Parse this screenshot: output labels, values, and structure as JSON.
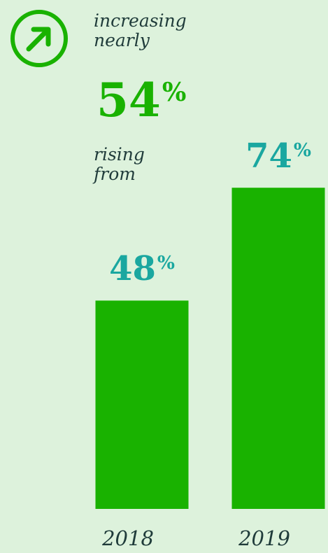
{
  "intro": {
    "line1": "increasing",
    "line2": "nearly"
  },
  "headline": {
    "value": "54",
    "unit": "%"
  },
  "rising": {
    "line1": "rising",
    "line2": "from"
  },
  "colors": {
    "background": "#ddf2dc",
    "bar": "#19b200",
    "headline": "#19b200",
    "bar_label": "#1aa7a0",
    "text": "#1f3b3a"
  },
  "icon": "arrow-up-right-circle-icon",
  "chart_data": {
    "type": "bar",
    "categories": [
      "2018",
      "2019"
    ],
    "values": [
      48,
      74
    ],
    "value_suffix": "%",
    "title": "",
    "xlabel": "",
    "ylabel": "",
    "ylim": [
      0,
      100
    ],
    "grid": false,
    "legend": "none"
  }
}
